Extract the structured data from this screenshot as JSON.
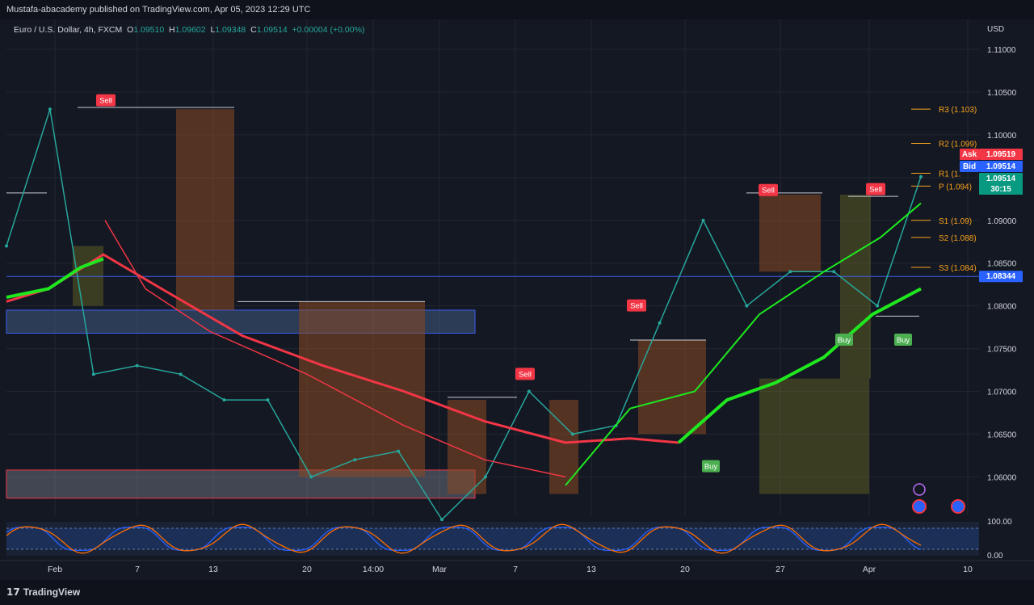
{
  "header": {
    "published": "Mustafa-abacademy published on TradingView.com, Apr 05, 2023 12:29 UTC"
  },
  "symbol": {
    "name": "Euro / U.S. Dollar, 4h, FXCM",
    "o_label": "O",
    "o": "1.09510",
    "h_label": "H",
    "h": "1.09602",
    "l_label": "L",
    "l": "1.09348",
    "c_label": "C",
    "c": "1.09514",
    "change": "+0.00004 (+0.00%)"
  },
  "price_axis": {
    "currency": "USD",
    "ticks": [
      "1.11000",
      "1.10500",
      "1.10000",
      "1.09500",
      "1.09000",
      "1.08500",
      "1.08000",
      "1.07500",
      "1.07000",
      "1.06500",
      "1.06000"
    ]
  },
  "badges": {
    "ask_label": "Ask",
    "ask_value": "1.09519",
    "bid_label": "Bid",
    "bid_value": "1.09514",
    "last_value": "1.09514",
    "countdown": "30:15",
    "hline_value": "1.08344"
  },
  "pivots": [
    {
      "label": "R3 (1.103)",
      "price": 1.103
    },
    {
      "label": "R2 (1.099)",
      "price": 1.099
    },
    {
      "label": "R1 (1.",
      "price": 1.0955
    },
    {
      "label": "P (1.094)",
      "price": 1.094
    },
    {
      "label": "S1 (1.09)",
      "price": 1.09
    },
    {
      "label": "S2 (1.088)",
      "price": 1.088
    },
    {
      "label": "S3 (1.084)",
      "price": 1.0845
    }
  ],
  "signals": [
    {
      "type": "Sell",
      "x_label": "Feb 4",
      "color": "#f23645"
    },
    {
      "type": "Sell",
      "x_label": "Mar 8",
      "color": "#f23645"
    },
    {
      "type": "Sell",
      "x_label": "Mar 15",
      "color": "#f23645"
    },
    {
      "type": "Buy",
      "x_label": "Mar 21",
      "color": "#4caf50"
    },
    {
      "type": "Sell",
      "x_label": "Mar 25",
      "color": "#f23645"
    },
    {
      "type": "Buy",
      "x_label": "Mar 30",
      "color": "#4caf50"
    },
    {
      "type": "Sell",
      "x_label": "Apr 1",
      "color": "#f23645"
    },
    {
      "type": "Buy",
      "x_label": "Apr 4",
      "color": "#4caf50"
    }
  ],
  "time_axis": [
    "Feb",
    "7",
    "13",
    "20",
    "14:00",
    "Mar",
    "7",
    "13",
    "20",
    "27",
    "Apr",
    "10"
  ],
  "oscillator": {
    "ticks": [
      "100.00",
      "0.00"
    ]
  },
  "footer": {
    "brand": "TradingView"
  },
  "chart_data": {
    "type": "line",
    "title": "Euro / U.S. Dollar, 4h, FXCM",
    "ylim": [
      1.0555,
      1.1135
    ],
    "x": [
      "Feb 1",
      "Feb 3",
      "Feb 7",
      "Feb 10",
      "Feb 14",
      "Feb 17",
      "Feb 21",
      "Feb 24",
      "Feb 28",
      "Mar 3",
      "Mar 7",
      "Mar 9",
      "Mar 13",
      "Mar 15",
      "Mar 17",
      "Mar 21",
      "Mar 23",
      "Mar 27",
      "Mar 29",
      "Mar 31",
      "Apr 3",
      "Apr 5"
    ],
    "series": [
      {
        "values": [
          1.087,
          1.103,
          1.072,
          1.073,
          1.072,
          1.069,
          1.069,
          1.06,
          1.062,
          1.063,
          1.055,
          1.06,
          1.07,
          1.065,
          1.066,
          1.078,
          1.09,
          1.08,
          1.084,
          1.084,
          1.08,
          1.0951
        ]
      }
    ],
    "grid": true
  }
}
